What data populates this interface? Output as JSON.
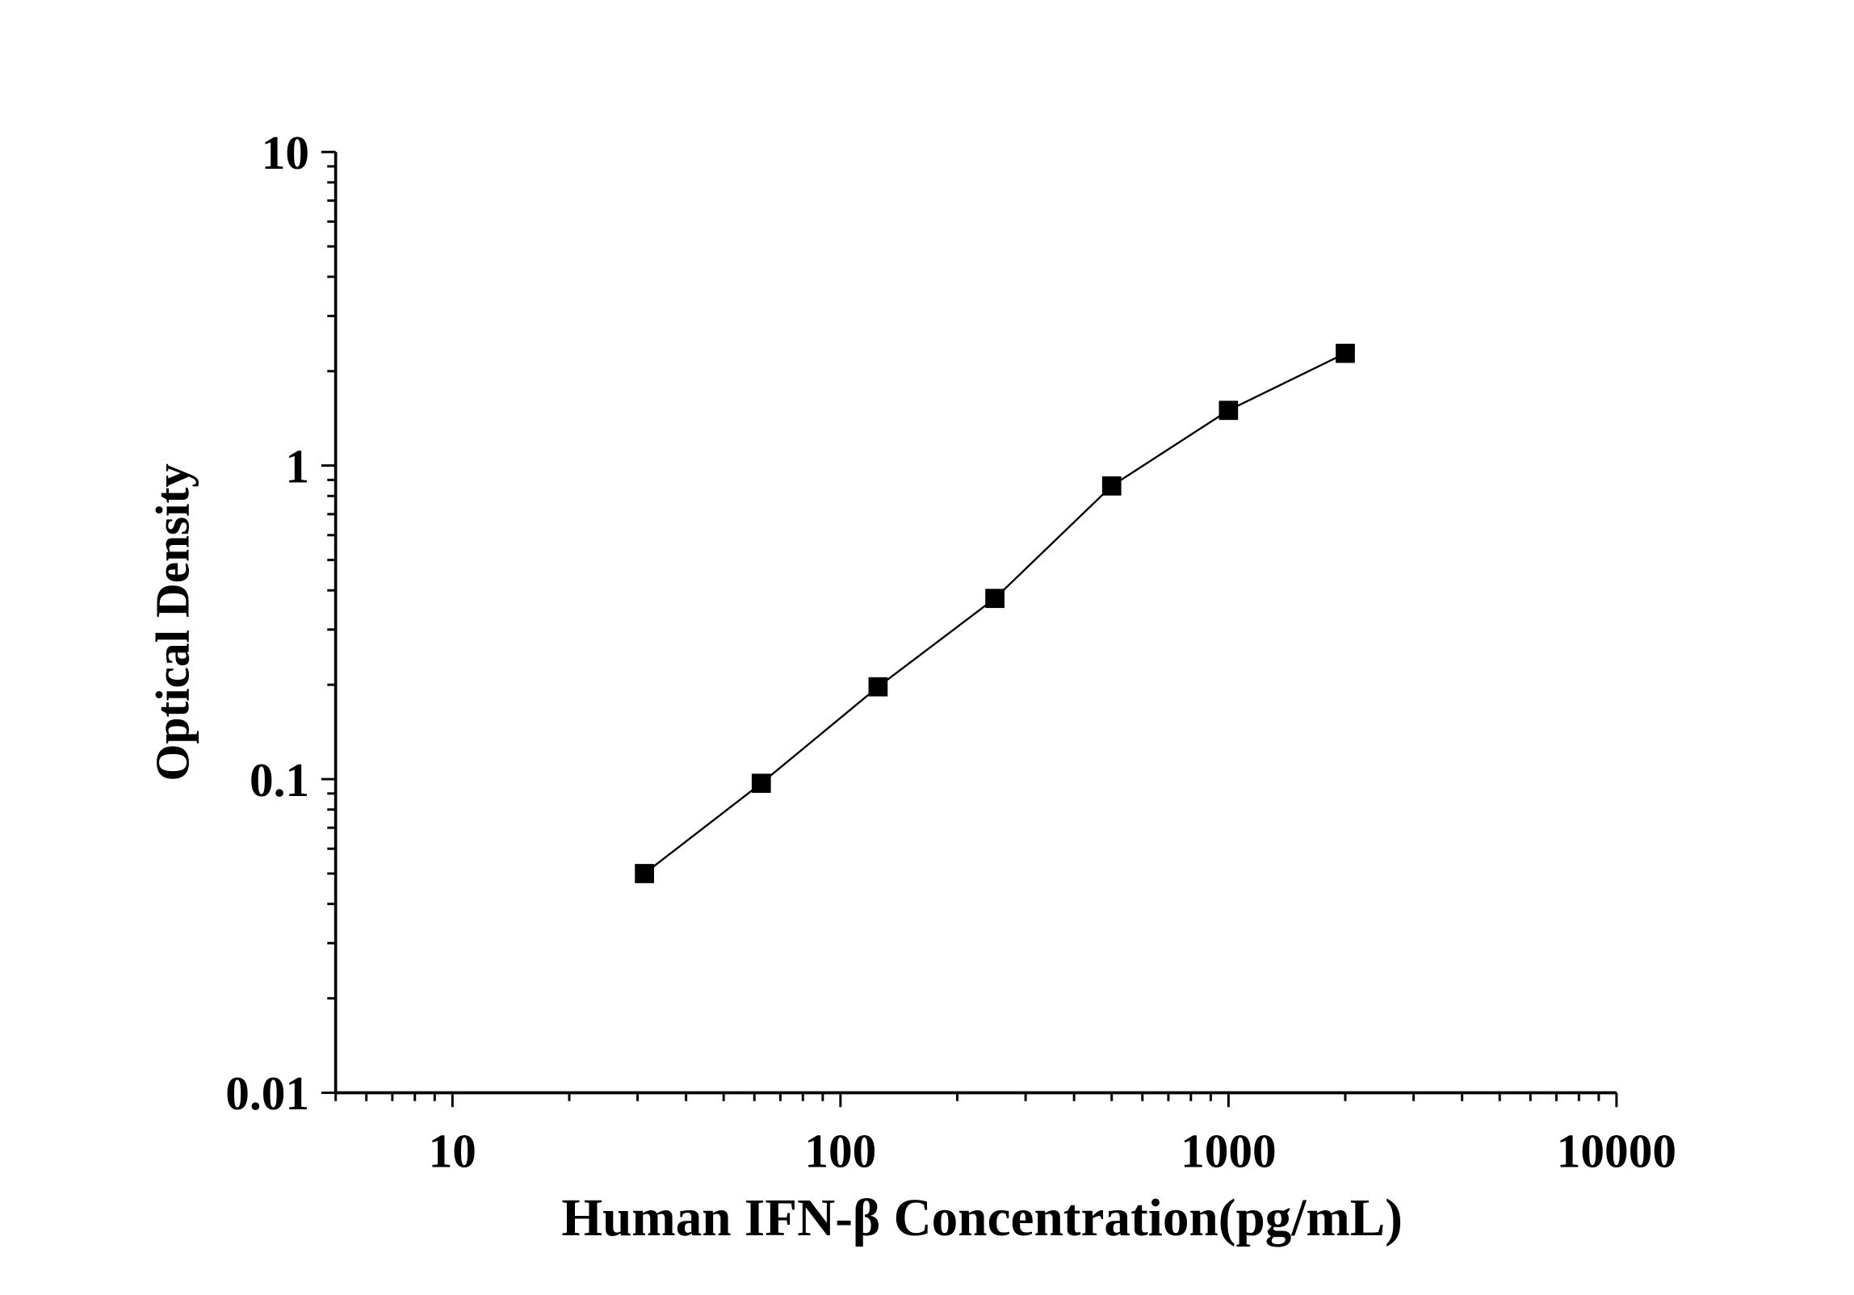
{
  "chart_data": {
    "type": "line",
    "title": "",
    "xlabel": "Human IFN-β Concentration(pg/mL)",
    "ylabel": "Optical Density",
    "xscale": "log",
    "yscale": "log",
    "xlim": [
      5,
      10000
    ],
    "ylim": [
      0.01,
      10
    ],
    "grid": false,
    "x_ticks": [
      {
        "value": 10,
        "label": "10"
      },
      {
        "value": 100,
        "label": "100"
      },
      {
        "value": 1000,
        "label": "1000"
      },
      {
        "value": 10000,
        "label": "10000"
      }
    ],
    "y_ticks": [
      {
        "value": 0.01,
        "label": "0.01"
      },
      {
        "value": 0.1,
        "label": "0.1"
      },
      {
        "value": 1,
        "label": "1"
      },
      {
        "value": 10,
        "label": "10"
      }
    ],
    "series": [
      {
        "marker": "square",
        "color": "#000000",
        "x": [
          31.25,
          62.5,
          125,
          250,
          500,
          1000,
          2000
        ],
        "y": [
          0.05,
          0.097,
          0.197,
          0.377,
          0.861,
          1.5,
          2.28
        ]
      }
    ]
  }
}
